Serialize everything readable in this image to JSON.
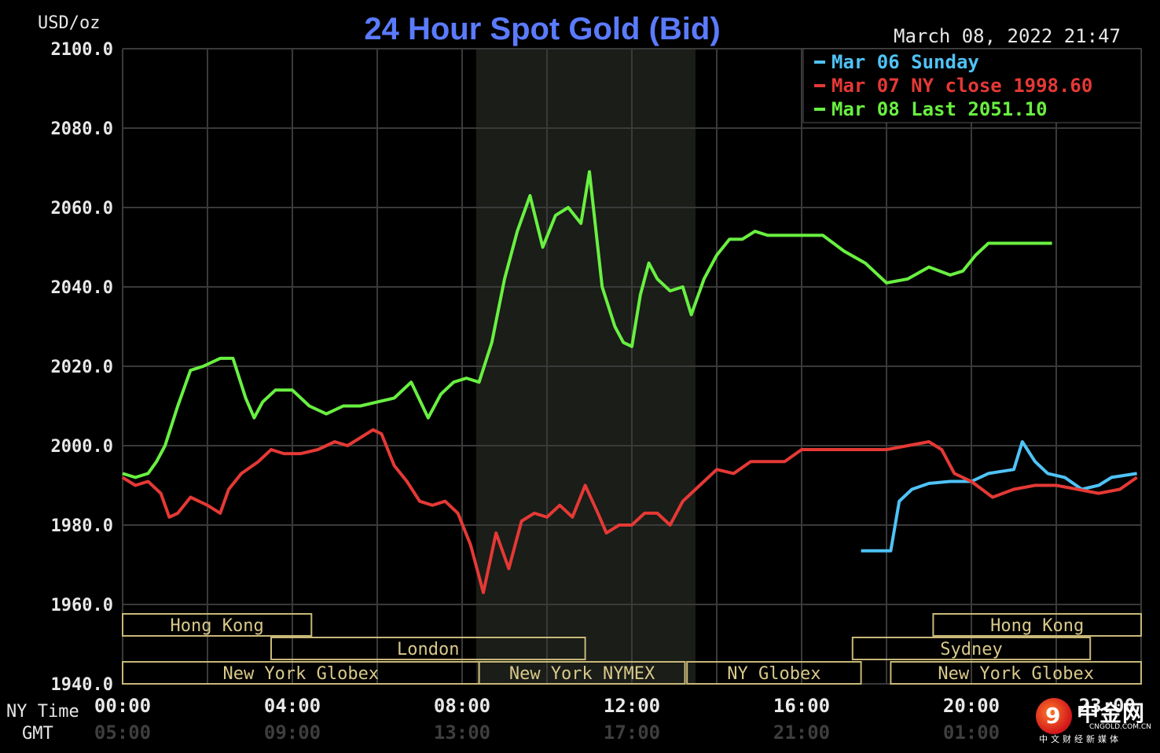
{
  "chart_data": {
    "type": "line",
    "title": "24 Hour Spot Gold (Bid)",
    "timestamp": "March 08, 2022 21:47",
    "y_unit_label": "USD/oz",
    "ylim": [
      1940,
      2100
    ],
    "y_ticks": [
      "2100.0",
      "2080.0",
      "2060.0",
      "2040.0",
      "2020.0",
      "2000.0",
      "1980.0",
      "1960.0",
      "1940.0"
    ],
    "x_label_ny": "NY Time",
    "x_label_gmt": "GMT",
    "x_ticks_ny": [
      "00:00",
      "04:00",
      "08:00",
      "12:00",
      "16:00",
      "20:00",
      "23:00"
    ],
    "x_ticks_gmt": [
      "05:00",
      "09:00",
      "13:00",
      "17:00",
      "21:00",
      "01:00"
    ],
    "grid": true,
    "legend_position": "top-right",
    "series": [
      {
        "name": "Mar 06 Sunday",
        "legend_label": "Mar 06 Sunday",
        "color": "#4fc3f7",
        "x": [
          17.4,
          18.1,
          18.3,
          18.6,
          19.0,
          19.5,
          20.0,
          20.4,
          20.7,
          21.0,
          21.2,
          21.5,
          21.8,
          22.2,
          22.6,
          23.0,
          23.3,
          23.9
        ],
        "values": [
          1973.5,
          1973.5,
          1986,
          1989,
          1990.5,
          1991,
          1991,
          1993,
          1993.5,
          1994,
          2001,
          1996,
          1993,
          1992,
          1989,
          1990,
          1992,
          1993
        ]
      },
      {
        "name": "Mar 07 NY close 1998.60",
        "legend_label": "Mar 07 NY close 1998.60",
        "color": "#e53935",
        "x": [
          0,
          0.3,
          0.6,
          0.9,
          1.1,
          1.3,
          1.6,
          2.0,
          2.3,
          2.5,
          2.8,
          3.2,
          3.5,
          3.8,
          4.2,
          4.6,
          5.0,
          5.3,
          5.6,
          5.9,
          6.1,
          6.4,
          6.7,
          7.0,
          7.3,
          7.6,
          7.9,
          8.2,
          8.5,
          8.8,
          9.1,
          9.4,
          9.7,
          10.0,
          10.3,
          10.6,
          10.9,
          11.2,
          11.4,
          11.7,
          12.0,
          12.3,
          12.6,
          12.9,
          13.2,
          13.6,
          14.0,
          14.4,
          14.8,
          15.2,
          15.6,
          16.0,
          16.5,
          17.0,
          17.5,
          18.0,
          18.5,
          19.0,
          19.3,
          19.6,
          20.0,
          20.5,
          21.0,
          21.5,
          22.0,
          22.5,
          23.0,
          23.5,
          23.9
        ],
        "values": [
          1992,
          1990,
          1991,
          1988,
          1982,
          1983,
          1987,
          1985,
          1983,
          1989,
          1993,
          1996,
          1999,
          1998,
          1998,
          1999,
          2001,
          2000,
          2002,
          2004,
          2003,
          1995,
          1991,
          1986,
          1985,
          1986,
          1983,
          1975,
          1963,
          1978,
          1969,
          1981,
          1983,
          1982,
          1985,
          1982,
          1990,
          1983,
          1978,
          1980,
          1980,
          1983,
          1983,
          1980,
          1986,
          1990,
          1994,
          1993,
          1996,
          1996,
          1996,
          1999,
          1999,
          1999,
          1999,
          1999,
          2000,
          2001,
          1999,
          1993,
          1991,
          1987,
          1989,
          1990,
          1990,
          1989,
          1988,
          1989,
          1992
        ]
      },
      {
        "name": "Mar 08 Last 2051.10",
        "legend_label": "Mar 08 Last 2051.10",
        "color": "#69f041",
        "x": [
          0,
          0.3,
          0.6,
          0.8,
          1.0,
          1.3,
          1.6,
          1.9,
          2.3,
          2.6,
          2.9,
          3.1,
          3.3,
          3.6,
          4.0,
          4.4,
          4.8,
          5.2,
          5.6,
          6.0,
          6.4,
          6.8,
          7.2,
          7.5,
          7.8,
          8.1,
          8.4,
          8.7,
          9.0,
          9.3,
          9.6,
          9.9,
          10.2,
          10.5,
          10.8,
          11.0,
          11.3,
          11.6,
          11.8,
          12.0,
          12.2,
          12.4,
          12.6,
          12.9,
          13.2,
          13.4,
          13.7,
          14.0,
          14.3,
          14.6,
          14.9,
          15.2,
          15.6,
          16.0,
          16.5,
          17.0,
          17.5,
          18.0,
          18.5,
          19.0,
          19.5,
          19.8,
          20.1,
          20.4,
          20.7,
          21.0,
          21.3,
          21.6,
          21.9
        ],
        "values": [
          1993,
          1992,
          1993,
          1996,
          2000,
          2010,
          2019,
          2020,
          2022,
          2022,
          2012,
          2007,
          2011,
          2014,
          2014,
          2010,
          2008,
          2010,
          2010,
          2011,
          2012,
          2016,
          2007,
          2013,
          2016,
          2017,
          2016,
          2026,
          2042,
          2054,
          2063,
          2050,
          2058,
          2060,
          2056,
          2069,
          2040,
          2030,
          2026,
          2025,
          2038,
          2046,
          2042,
          2039,
          2040,
          2033,
          2042,
          2048,
          2052,
          2052,
          2054,
          2053,
          2053,
          2053,
          2053,
          2049,
          2046,
          2041,
          2042,
          2045,
          2043,
          2044,
          2048,
          2051,
          2051,
          2051,
          2051,
          2051,
          2051
        ]
      }
    ],
    "sessions": [
      {
        "label": "Hong Kong",
        "row": 0
      },
      {
        "label": "London",
        "row": 1
      },
      {
        "label": "New York Globex",
        "row": 2
      },
      {
        "label": "New York NYMEX",
        "row": 2
      },
      {
        "label": "NY Globex",
        "row": 2
      },
      {
        "label": "Hong Kong",
        "row": 0
      },
      {
        "label": "Sydney",
        "row": 1
      },
      {
        "label": "New York Globex",
        "row": 2
      }
    ]
  },
  "branding": {
    "name_cn": "中金网",
    "url": "CNGOLD.COM.CN",
    "tagline": "中文财经新媒体",
    "glyph": "9"
  }
}
